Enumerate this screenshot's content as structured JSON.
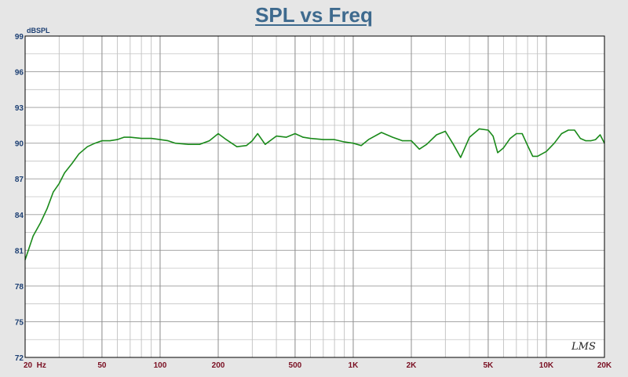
{
  "chart_data": {
    "type": "line",
    "title": "SPL vs Freq",
    "ylabel": "dBSPL",
    "xlabel": "",
    "xscale": "log",
    "xlim": [
      20,
      20000
    ],
    "ylim": [
      72,
      99
    ],
    "grid": true,
    "y_ticks": [
      "72",
      "75",
      "78",
      "81",
      "84",
      "87",
      "90",
      "93",
      "96",
      "99"
    ],
    "y_tick_values": [
      72,
      75,
      78,
      81,
      84,
      87,
      90,
      93,
      96,
      99
    ],
    "x_ticks": [
      "20  Hz",
      "50",
      "100",
      "200",
      "500",
      "1K",
      "2K",
      "5K",
      "10K",
      "20K"
    ],
    "x_tick_values": [
      20,
      50,
      100,
      200,
      500,
      1000,
      2000,
      5000,
      10000,
      20000
    ],
    "series_color": "#1a8a1a",
    "series": [
      {
        "name": "",
        "x": [
          20,
          22,
          24,
          26,
          28,
          30,
          32,
          35,
          38,
          42,
          46,
          50,
          55,
          60,
          65,
          70,
          80,
          90,
          100,
          110,
          120,
          140,
          160,
          180,
          200,
          220,
          250,
          280,
          300,
          320,
          350,
          400,
          450,
          500,
          550,
          600,
          700,
          800,
          900,
          1000,
          1100,
          1200,
          1400,
          1600,
          1800,
          2000,
          2200,
          2400,
          2700,
          3000,
          3300,
          3600,
          4000,
          4500,
          5000,
          5300,
          5600,
          6000,
          6500,
          7000,
          7500,
          8000,
          8500,
          9000,
          10000,
          11000,
          12000,
          13000,
          14000,
          15000,
          16000,
          17000,
          18000,
          19000,
          20000
        ],
        "y": [
          80.2,
          82.2,
          83.3,
          84.5,
          85.9,
          86.6,
          87.5,
          88.3,
          89.1,
          89.7,
          90.0,
          90.2,
          90.2,
          90.3,
          90.5,
          90.5,
          90.4,
          90.4,
          90.3,
          90.2,
          90.0,
          89.9,
          89.9,
          90.2,
          90.8,
          90.3,
          89.7,
          89.8,
          90.2,
          90.8,
          89.9,
          90.6,
          90.5,
          90.8,
          90.5,
          90.4,
          90.3,
          90.3,
          90.1,
          90.0,
          89.8,
          90.3,
          90.9,
          90.5,
          90.2,
          90.2,
          89.5,
          89.9,
          90.7,
          91.0,
          89.9,
          88.8,
          90.5,
          91.2,
          91.1,
          90.6,
          89.2,
          89.6,
          90.4,
          90.8,
          90.8,
          89.8,
          88.9,
          88.9,
          89.3,
          90.0,
          90.8,
          91.1,
          91.1,
          90.4,
          90.2,
          90.2,
          90.3,
          90.7,
          90.0
        ]
      }
    ],
    "watermark": "LMS"
  }
}
